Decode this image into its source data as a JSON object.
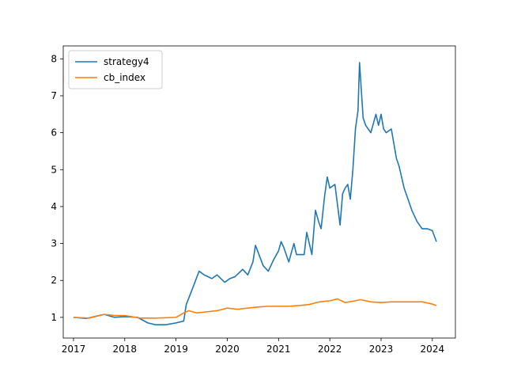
{
  "chart_data": {
    "type": "line",
    "title": "",
    "xlabel": "",
    "ylabel": "",
    "xlim": [
      2016.8,
      2024.45
    ],
    "ylim": [
      0.44,
      8.35
    ],
    "xticks": [
      2017,
      2018,
      2019,
      2020,
      2021,
      2022,
      2023,
      2024
    ],
    "xtick_labels": [
      "2017",
      "2018",
      "2019",
      "2020",
      "2021",
      "2022",
      "2023",
      "2024"
    ],
    "yticks": [
      1,
      2,
      3,
      4,
      5,
      6,
      7,
      8
    ],
    "ytick_labels": [
      "1",
      "2",
      "3",
      "4",
      "5",
      "6",
      "7",
      "8"
    ],
    "grid": false,
    "legend_position": "upper-left",
    "series": [
      {
        "name": "strategy4",
        "color": "#1f77b4",
        "x": [
          2017.0,
          2017.25,
          2017.5,
          2017.6,
          2017.8,
          2018.0,
          2018.25,
          2018.45,
          2018.6,
          2018.8,
          2019.0,
          2019.15,
          2019.2,
          2019.3,
          2019.45,
          2019.55,
          2019.7,
          2019.8,
          2019.95,
          2020.05,
          2020.15,
          2020.3,
          2020.4,
          2020.5,
          2020.55,
          2020.7,
          2020.8,
          2020.9,
          2021.0,
          2021.05,
          2021.1,
          2021.2,
          2021.3,
          2021.35,
          2021.5,
          2021.55,
          2021.65,
          2021.72,
          2021.78,
          2021.83,
          2021.9,
          2021.95,
          2022.0,
          2022.1,
          2022.2,
          2022.25,
          2022.3,
          2022.35,
          2022.4,
          2022.45,
          2022.5,
          2022.55,
          2022.58,
          2022.65,
          2022.7,
          2022.8,
          2022.9,
          2022.95,
          2023.0,
          2023.05,
          2023.1,
          2023.2,
          2023.3,
          2023.35,
          2023.45,
          2023.55,
          2023.6,
          2023.7,
          2023.8,
          2023.9,
          2024.0,
          2024.08
        ],
        "y": [
          1.0,
          0.97,
          1.05,
          1.08,
          1.0,
          1.02,
          1.0,
          0.85,
          0.8,
          0.8,
          0.85,
          0.9,
          1.35,
          1.7,
          2.25,
          2.15,
          2.05,
          2.15,
          1.95,
          2.05,
          2.1,
          2.3,
          2.15,
          2.5,
          2.95,
          2.4,
          2.25,
          2.55,
          2.8,
          3.05,
          2.9,
          2.5,
          3.0,
          2.7,
          2.7,
          3.3,
          2.7,
          3.9,
          3.6,
          3.4,
          4.3,
          4.8,
          4.5,
          4.6,
          3.5,
          4.35,
          4.5,
          4.6,
          4.2,
          5.0,
          6.1,
          6.6,
          7.9,
          6.4,
          6.2,
          6.0,
          6.5,
          6.2,
          6.5,
          6.1,
          6.0,
          6.1,
          5.3,
          5.1,
          4.5,
          4.1,
          3.9,
          3.6,
          3.4,
          3.4,
          3.35,
          3.05
        ]
      },
      {
        "name": "cb_index",
        "color": "#ff7f0e",
        "x": [
          2017.0,
          2017.3,
          2017.6,
          2017.8,
          2018.0,
          2018.3,
          2018.6,
          2019.0,
          2019.15,
          2019.25,
          2019.4,
          2019.6,
          2019.8,
          2020.0,
          2020.2,
          2020.4,
          2020.6,
          2020.8,
          2021.0,
          2021.2,
          2021.4,
          2021.6,
          2021.8,
          2022.0,
          2022.15,
          2022.3,
          2022.5,
          2022.6,
          2022.8,
          2023.0,
          2023.2,
          2023.5,
          2023.8,
          2024.0,
          2024.08
        ],
        "y": [
          1.0,
          0.98,
          1.08,
          1.05,
          1.05,
          0.98,
          0.98,
          1.0,
          1.12,
          1.18,
          1.12,
          1.15,
          1.18,
          1.25,
          1.22,
          1.25,
          1.28,
          1.3,
          1.3,
          1.3,
          1.32,
          1.35,
          1.42,
          1.45,
          1.5,
          1.4,
          1.45,
          1.48,
          1.42,
          1.4,
          1.42,
          1.42,
          1.42,
          1.36,
          1.32
        ]
      }
    ]
  }
}
